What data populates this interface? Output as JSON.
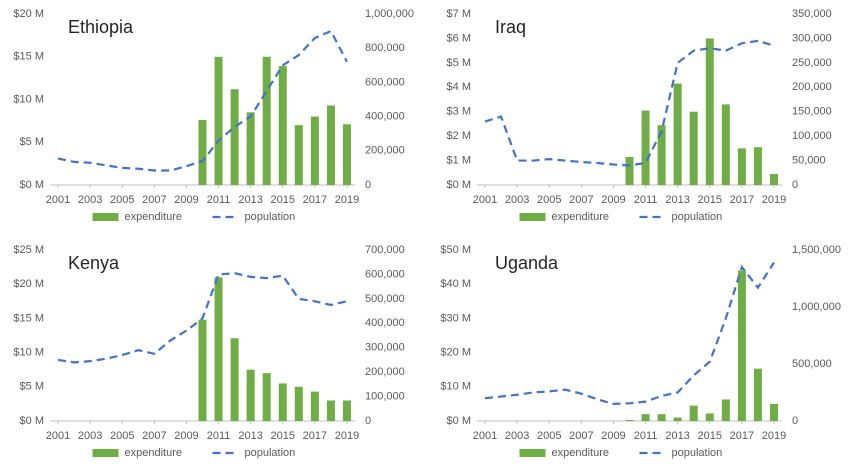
{
  "chart_data": [
    {
      "type": "combo",
      "title": "Ethiopia",
      "x": [
        2001,
        2002,
        2003,
        2004,
        2005,
        2006,
        2007,
        2008,
        2009,
        2010,
        2011,
        2012,
        2013,
        2014,
        2015,
        2016,
        2017,
        2018,
        2019
      ],
      "xlim": [
        2001,
        2019
      ],
      "xticks": [
        2001,
        2003,
        2005,
        2007,
        2009,
        2011,
        2013,
        2015,
        2017,
        2019
      ],
      "ylim": [
        0,
        20
      ],
      "yticks": [
        {
          "value": 0,
          "label": "$0 M"
        },
        {
          "value": 5,
          "label": "$5 M"
        },
        {
          "value": 10,
          "label": "$10 M"
        },
        {
          "value": 15,
          "label": "$15 M"
        },
        {
          "value": 20,
          "label": "$20 M"
        }
      ],
      "y2lim": [
        0,
        1000000
      ],
      "y2ticks": [
        0,
        {
          "value": 200000,
          "label": "200,000"
        },
        {
          "value": 400000,
          "label": "400,000"
        },
        {
          "value": 600000,
          "label": "600,000"
        },
        {
          "value": 800000,
          "label": "800,000"
        },
        {
          "value": 1000000,
          "label": "1,000,000"
        }
      ],
      "series": [
        {
          "name": "expenditure",
          "type": "bar",
          "color": "#70ad47",
          "values": [
            null,
            null,
            null,
            null,
            null,
            null,
            null,
            null,
            null,
            7.6,
            15,
            11.2,
            8.5,
            15,
            13.9,
            7,
            8,
            9.3,
            7.1
          ]
        },
        {
          "name": "population",
          "type": "line",
          "axis": "y2",
          "color": "#4472c4",
          "values": [
            155000,
            135000,
            130000,
            115000,
            100000,
            95000,
            85000,
            85000,
            110000,
            140000,
            260000,
            340000,
            400000,
            550000,
            700000,
            760000,
            860000,
            900000,
            720000
          ]
        }
      ]
    },
    {
      "type": "combo",
      "title": "Iraq",
      "x": [
        2001,
        2002,
        2003,
        2004,
        2005,
        2006,
        2007,
        2008,
        2009,
        2010,
        2011,
        2012,
        2013,
        2014,
        2015,
        2016,
        2017,
        2018,
        2019
      ],
      "xlim": [
        2001,
        2019
      ],
      "xticks": [
        2001,
        2003,
        2005,
        2007,
        2009,
        2011,
        2013,
        2015,
        2017,
        2019
      ],
      "ylim": [
        0,
        7
      ],
      "yticks": [
        {
          "value": 0,
          "label": "$0 M"
        },
        {
          "value": 1,
          "label": "$1 M"
        },
        {
          "value": 2,
          "label": "$2 M"
        },
        {
          "value": 3,
          "label": "$3 M"
        },
        {
          "value": 4,
          "label": "$4 M"
        },
        {
          "value": 5,
          "label": "$5 M"
        },
        {
          "value": 6,
          "label": "$6 M"
        },
        {
          "value": 7,
          "label": "$7 M"
        }
      ],
      "y2lim": [
        0,
        350000
      ],
      "y2ticks": [
        0,
        {
          "value": 50000,
          "label": "50,000"
        },
        {
          "value": 100000,
          "label": "100,000"
        },
        {
          "value": 150000,
          "label": "150,000"
        },
        {
          "value": 200000,
          "label": "200,000"
        },
        {
          "value": 250000,
          "label": "250,000"
        },
        {
          "value": 300000,
          "label": "300,000"
        },
        {
          "value": 350000,
          "label": "350,000"
        }
      ],
      "series": [
        {
          "name": "expenditure",
          "type": "bar",
          "color": "#70ad47",
          "values": [
            null,
            null,
            null,
            null,
            null,
            null,
            null,
            null,
            null,
            1.15,
            3.05,
            2.45,
            4.15,
            3.0,
            6.0,
            3.3,
            1.5,
            1.55,
            0.45
          ]
        },
        {
          "name": "population",
          "type": "line",
          "axis": "y2",
          "color": "#4472c4",
          "values": [
            130000,
            140000,
            50000,
            50000,
            53000,
            50000,
            47000,
            45000,
            42000,
            40000,
            45000,
            110000,
            250000,
            275000,
            280000,
            275000,
            290000,
            295000,
            285000
          ]
        }
      ]
    },
    {
      "type": "combo",
      "title": "Kenya",
      "x": [
        2001,
        2002,
        2003,
        2004,
        2005,
        2006,
        2007,
        2008,
        2009,
        2010,
        2011,
        2012,
        2013,
        2014,
        2015,
        2016,
        2017,
        2018,
        2019
      ],
      "xlim": [
        2001,
        2019
      ],
      "xticks": [
        2001,
        2003,
        2005,
        2007,
        2009,
        2011,
        2013,
        2015,
        2017,
        2019
      ],
      "ylim": [
        0,
        25
      ],
      "yticks": [
        {
          "value": 0,
          "label": "$0 M"
        },
        {
          "value": 5,
          "label": "$5 M"
        },
        {
          "value": 10,
          "label": "$10 M"
        },
        {
          "value": 15,
          "label": "$15 M"
        },
        {
          "value": 20,
          "label": "$20 M"
        },
        {
          "value": 25,
          "label": "$25 M"
        }
      ],
      "y2lim": [
        0,
        700000
      ],
      "y2ticks": [
        0,
        {
          "value": 100000,
          "label": "100,000"
        },
        {
          "value": 200000,
          "label": "200,000"
        },
        {
          "value": 300000,
          "label": "300,000"
        },
        {
          "value": 400000,
          "label": "400,000"
        },
        {
          "value": 500000,
          "label": "500,000"
        },
        {
          "value": 600000,
          "label": "600,000"
        },
        {
          "value": 700000,
          "label": "700,000"
        }
      ],
      "series": [
        {
          "name": "expenditure",
          "type": "bar",
          "color": "#70ad47",
          "values": [
            null,
            null,
            null,
            null,
            null,
            null,
            null,
            null,
            null,
            14.8,
            21,
            12.1,
            7.5,
            7,
            5.5,
            5,
            4.3,
            3,
            3
          ]
        },
        {
          "name": "population",
          "type": "line",
          "axis": "y2",
          "color": "#4472c4",
          "values": [
            250000,
            240000,
            245000,
            255000,
            270000,
            290000,
            275000,
            330000,
            370000,
            420000,
            600000,
            605000,
            590000,
            585000,
            595000,
            500000,
            490000,
            475000,
            490000
          ]
        }
      ]
    },
    {
      "type": "combo",
      "title": "Uganda",
      "x": [
        2001,
        2002,
        2003,
        2004,
        2005,
        2006,
        2007,
        2008,
        2009,
        2010,
        2011,
        2012,
        2013,
        2014,
        2015,
        2016,
        2017,
        2018,
        2019
      ],
      "xlim": [
        2001,
        2019
      ],
      "xticks": [
        2001,
        2003,
        2005,
        2007,
        2009,
        2011,
        2013,
        2015,
        2017,
        2019
      ],
      "ylim": [
        0,
        50
      ],
      "yticks": [
        {
          "value": 0,
          "label": "$0 M"
        },
        {
          "value": 10,
          "label": "$10 M"
        },
        {
          "value": 20,
          "label": "$20 M"
        },
        {
          "value": 30,
          "label": "$30 M"
        },
        {
          "value": 40,
          "label": "$40 M"
        },
        {
          "value": 50,
          "label": "$50 M"
        }
      ],
      "y2lim": [
        0,
        1500000
      ],
      "y2ticks": [
        0,
        {
          "value": 500000,
          "label": "500,000"
        },
        {
          "value": 1000000,
          "label": "1,000,000"
        },
        {
          "value": 1500000,
          "label": "1,500,000"
        }
      ],
      "series": [
        {
          "name": "expenditure",
          "type": "bar",
          "color": "#70ad47",
          "values": [
            null,
            null,
            null,
            null,
            null,
            null,
            null,
            null,
            null,
            0.3,
            2,
            2,
            1,
            4.5,
            2.2,
            6.3,
            44,
            15.3,
            5
          ]
        },
        {
          "name": "population",
          "type": "line",
          "axis": "y2",
          "color": "#4472c4",
          "values": [
            200000,
            215000,
            230000,
            250000,
            260000,
            275000,
            240000,
            190000,
            150000,
            155000,
            170000,
            220000,
            250000,
            400000,
            520000,
            900000,
            1350000,
            1170000,
            1390000
          ]
        }
      ]
    }
  ]
}
